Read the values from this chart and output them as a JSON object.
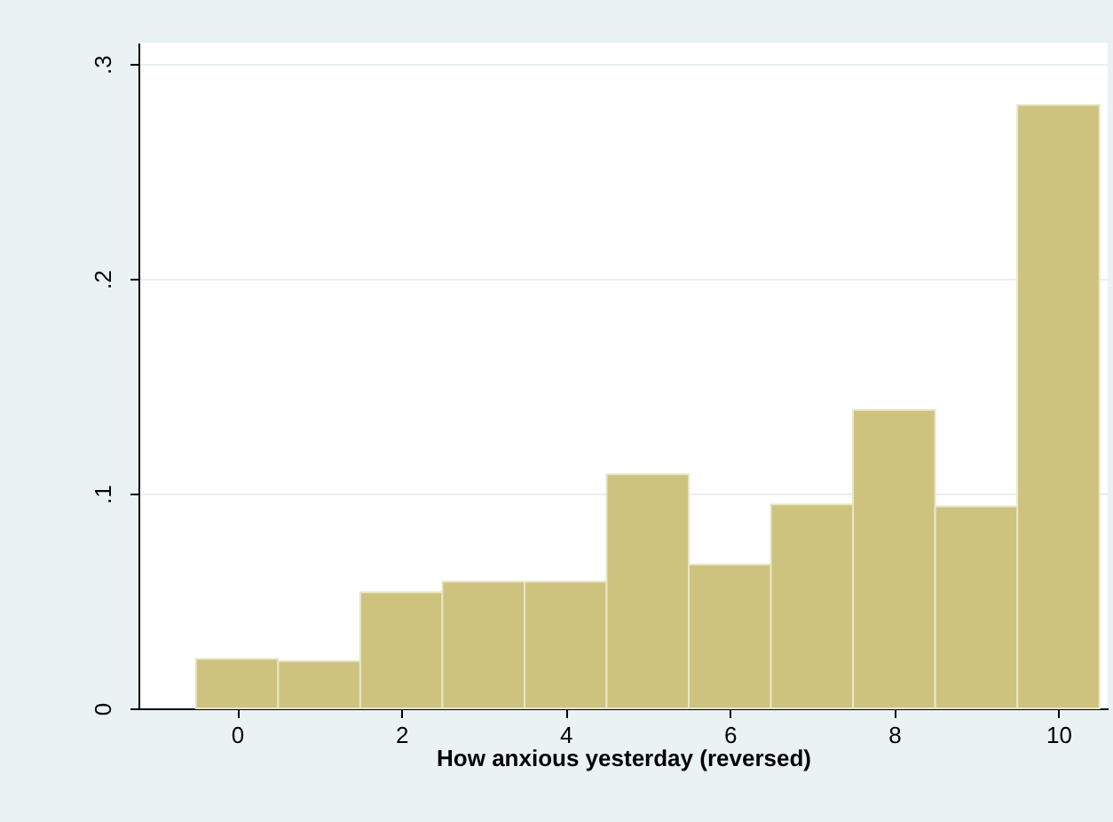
{
  "chart_data": {
    "type": "histogram",
    "bins": [
      -0.5,
      0.5,
      1.5,
      2.5,
      3.5,
      4.5,
      5.5,
      6.5,
      7.5,
      8.5,
      9.5,
      10.5
    ],
    "values": [
      0.023,
      0.022,
      0.054,
      0.059,
      0.059,
      0.109,
      0.067,
      0.095,
      0.139,
      0.094,
      0.281
    ],
    "color": "#cdc37f",
    "xlabel": "How anxious yesterday (reversed)",
    "xlim": [
      -1.2,
      10.6
    ],
    "xticks": [
      0,
      2,
      4,
      6,
      8,
      10
    ],
    "ylim": [
      0,
      0.31
    ],
    "yticks": [
      {
        "value": 0,
        "label": "0"
      },
      {
        "value": 0.1,
        "label": ".1"
      },
      {
        "value": 0.2,
        "label": ".2"
      },
      {
        "value": 0.3,
        "label": ".3"
      }
    ],
    "grid": "y"
  }
}
